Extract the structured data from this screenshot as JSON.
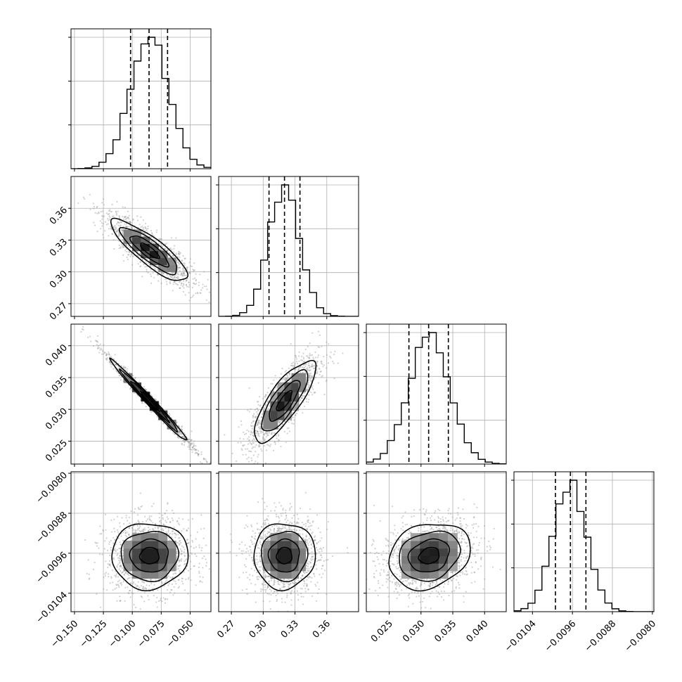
{
  "chart_data": {
    "type": "corner",
    "colors": {
      "ink": "#000000",
      "grid": "#b0b0b0",
      "scatter": "#9a9a9a"
    },
    "grid": true,
    "parameters": [
      {
        "range": [
          -0.153,
          -0.032
        ],
        "ticks": [
          -0.15,
          -0.125,
          -0.1,
          -0.075,
          -0.05
        ],
        "tick_labels": [
          "−0.150",
          "−0.125",
          "−0.100",
          "−0.075",
          "−0.050"
        ],
        "mean": -0.085,
        "sigma": 0.0165,
        "quantiles": [
          -0.1015,
          -0.0855,
          -0.0695
        ]
      },
      {
        "range": [
          0.258,
          0.39
        ],
        "ticks": [
          0.27,
          0.3,
          0.33,
          0.36
        ],
        "tick_labels": [
          "0.27",
          "0.30",
          "0.33",
          "0.36"
        ],
        "mean": 0.32,
        "sigma": 0.0145,
        "quantiles": [
          0.3055,
          0.3201,
          0.3347
        ]
      },
      {
        "range": [
          0.0214,
          0.0434
        ],
        "ticks": [
          0.025,
          0.03,
          0.035,
          0.04
        ],
        "tick_labels": [
          "0.025",
          "0.030",
          "0.035",
          "0.040"
        ],
        "mean": 0.0313,
        "sigma": 0.0032,
        "quantiles": [
          0.0281,
          0.0312,
          0.0343
        ]
      },
      {
        "range": [
          -0.01077,
          -0.00797
        ],
        "ticks": [
          -0.0104,
          -0.0096,
          -0.0088,
          -0.008
        ],
        "tick_labels": [
          "−0.0104",
          "−0.0096",
          "−0.0088",
          "−0.0080"
        ],
        "mean": -0.00965,
        "sigma": 0.00033,
        "quantiles": [
          -0.00994,
          -0.00964,
          -0.00933
        ]
      }
    ],
    "correlations": [
      [
        1.0,
        -0.85,
        -0.99,
        0.02
      ],
      [
        -0.85,
        1.0,
        0.8,
        0.02
      ],
      [
        -0.99,
        0.8,
        1.0,
        0.2
      ],
      [
        0.02,
        0.02,
        0.2,
        1.0
      ]
    ],
    "histogram_peak_ticks": [
      3,
      3,
      3,
      3
    ],
    "histogram_bins": 20,
    "contour_levels_sigma": [
      0.5,
      1.0,
      1.5,
      2.0
    ]
  }
}
